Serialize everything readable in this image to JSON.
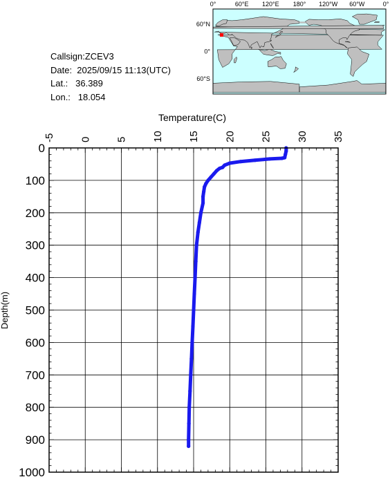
{
  "info": {
    "callsign": "Callsign:ZCEV3",
    "date": "Date:  2025/09/15 11:13(UTC)",
    "lat": "Lat.:   36.389",
    "lon": "Lon.:   18.054"
  },
  "map": {
    "lon_labels": [
      "0°",
      "60°E",
      "120°E",
      "180°",
      "120°W",
      "60°W",
      "0°"
    ],
    "lat_labels": [
      "60°N",
      "0°",
      "60°S"
    ],
    "marker": {
      "lat": 36.389,
      "lon": 18.054
    },
    "colors": {
      "ocean": "#ccffff",
      "land": "#bfbfbf",
      "marker": "#ff0000"
    }
  },
  "chart_data": {
    "type": "line",
    "xlabel": "Temperature(C)",
    "ylabel": "Depth(m)",
    "xlim": [
      -5,
      35
    ],
    "ylim": [
      1000,
      0
    ],
    "x_ticks": [
      -5,
      0,
      5,
      10,
      15,
      20,
      25,
      30,
      35
    ],
    "y_ticks": [
      0,
      100,
      200,
      300,
      400,
      500,
      600,
      700,
      800,
      900,
      1000
    ],
    "x_tick_labels": [
      "-5",
      "0",
      "5",
      "10",
      "15",
      "20",
      "25",
      "30",
      "35"
    ],
    "y_tick_labels": [
      "0",
      "100",
      "200",
      "300",
      "400",
      "500",
      "600",
      "700",
      "800",
      "900",
      "1000"
    ],
    "x_axis_position": "top",
    "grid": true,
    "color": "#1a1aee",
    "series": [
      {
        "points": [
          [
            27.8,
            0
          ],
          [
            27.8,
            10
          ],
          [
            27.7,
            20
          ],
          [
            27.6,
            30
          ],
          [
            27.2,
            32
          ],
          [
            25.5,
            34
          ],
          [
            23.5,
            38
          ],
          [
            21.5,
            42
          ],
          [
            20.0,
            47
          ],
          [
            19.3,
            53
          ],
          [
            19.0,
            60
          ],
          [
            18.6,
            63
          ],
          [
            18.2,
            70
          ],
          [
            17.8,
            80
          ],
          [
            17.4,
            90
          ],
          [
            17.0,
            100
          ],
          [
            16.7,
            110
          ],
          [
            16.5,
            120
          ],
          [
            16.4,
            135
          ],
          [
            16.3,
            150
          ],
          [
            16.3,
            170
          ],
          [
            16.0,
            200
          ],
          [
            15.8,
            230
          ],
          [
            15.6,
            260
          ],
          [
            15.4,
            300
          ],
          [
            15.3,
            350
          ],
          [
            15.2,
            400
          ],
          [
            15.1,
            450
          ],
          [
            15.0,
            500
          ],
          [
            14.9,
            550
          ],
          [
            14.8,
            600
          ],
          [
            14.7,
            650
          ],
          [
            14.6,
            700
          ],
          [
            14.5,
            750
          ],
          [
            14.4,
            800
          ],
          [
            14.35,
            850
          ],
          [
            14.3,
            900
          ],
          [
            14.3,
            920
          ]
        ]
      }
    ]
  }
}
